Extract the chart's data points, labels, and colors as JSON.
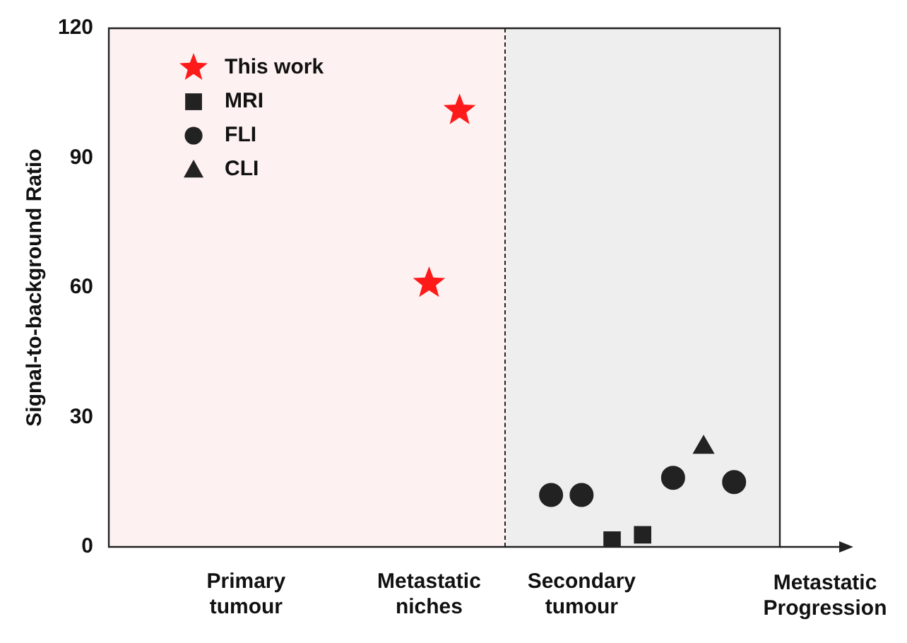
{
  "chart_data": {
    "type": "scatter",
    "ylabel": "Signal-to-background Ratio",
    "xlabel": "Metastatic Progression",
    "categories": [
      null,
      null,
      null,
      null,
      "Primary tumour",
      null,
      null,
      null,
      null,
      null,
      "Metastatic niches",
      null,
      null,
      null,
      null,
      "Secondary tumour",
      null,
      null,
      null,
      null,
      null,
      null
    ],
    "ylim": [
      0,
      120
    ],
    "yticks": [
      0,
      30,
      60,
      90,
      120
    ],
    "grid": false,
    "legend": "top left",
    "series": [
      {
        "name": "This work",
        "color": "#ff1a1a",
        "marker": "star",
        "values": [
          null,
          null,
          null,
          null,
          null,
          null,
          null,
          null,
          null,
          null,
          61,
          101,
          null,
          null,
          null,
          null,
          null,
          null,
          null,
          null,
          null,
          null
        ]
      },
      {
        "name": "MRI",
        "color": "#222222",
        "marker": "square",
        "values": [
          null,
          null,
          null,
          null,
          null,
          null,
          null,
          null,
          null,
          null,
          null,
          null,
          null,
          null,
          null,
          null,
          1.6,
          2.8,
          null,
          null,
          null,
          null
        ]
      },
      {
        "name": "FLI",
        "color": "#222222",
        "marker": "circle",
        "values": [
          null,
          null,
          null,
          null,
          null,
          null,
          null,
          null,
          null,
          null,
          null,
          null,
          null,
          null,
          12,
          12,
          null,
          null,
          16,
          null,
          15,
          null
        ]
      },
      {
        "name": "CLI",
        "color": "#222222",
        "marker": "triangle",
        "values": [
          null,
          null,
          null,
          null,
          null,
          null,
          null,
          null,
          null,
          null,
          null,
          null,
          null,
          null,
          null,
          null,
          null,
          null,
          null,
          23,
          null,
          null
        ]
      }
    ]
  }
}
